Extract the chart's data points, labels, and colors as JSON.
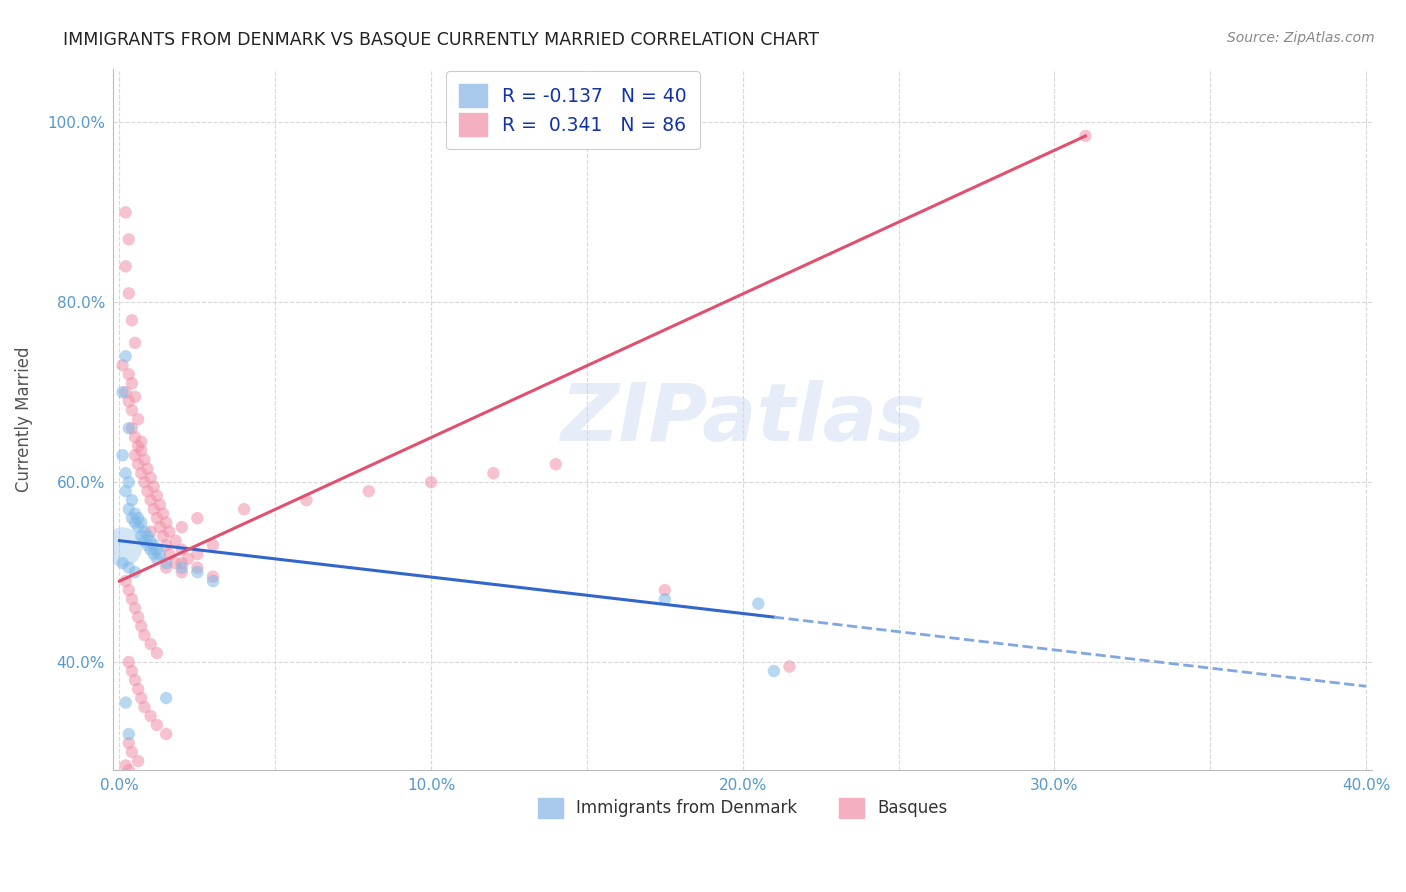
{
  "title": "IMMIGRANTS FROM DENMARK VS BASQUE CURRENTLY MARRIED CORRELATION CHART",
  "source": "Source: ZipAtlas.com",
  "ylabel": "Currently Married",
  "xlim": [
    -0.002,
    0.402
  ],
  "ylim": [
    0.28,
    1.06
  ],
  "xtick_labels": [
    "0.0%",
    "",
    "10.0%",
    "",
    "20.0%",
    "",
    "30.0%",
    "",
    "40.0%"
  ],
  "xtick_vals": [
    0.0,
    0.05,
    0.1,
    0.15,
    0.2,
    0.25,
    0.3,
    0.35,
    0.4
  ],
  "ytick_labels": [
    "40.0%",
    "60.0%",
    "80.0%",
    "100.0%"
  ],
  "ytick_vals": [
    0.4,
    0.6,
    0.8,
    1.0
  ],
  "legend_labels_top": [
    "R = -0.137   N = 40",
    "R =  0.341   N = 86"
  ],
  "legend_labels_bot": [
    "Immigrants from Denmark",
    "Basques"
  ],
  "denmark_color": "#7eb8e8",
  "basque_color": "#f090a8",
  "denmark_R": -0.137,
  "basque_R": 0.341,
  "watermark": "ZIPatlas",
  "background_color": "#ffffff",
  "grid_color": "#d8d8d8",
  "denmark_scatter": [
    [
      0.001,
      0.7
    ],
    [
      0.002,
      0.74
    ],
    [
      0.003,
      0.66
    ],
    [
      0.001,
      0.63
    ],
    [
      0.002,
      0.61
    ],
    [
      0.003,
      0.6
    ],
    [
      0.002,
      0.59
    ],
    [
      0.004,
      0.58
    ],
    [
      0.003,
      0.57
    ],
    [
      0.005,
      0.565
    ],
    [
      0.004,
      0.56
    ],
    [
      0.006,
      0.56
    ],
    [
      0.005,
      0.555
    ],
    [
      0.007,
      0.555
    ],
    [
      0.006,
      0.55
    ],
    [
      0.008,
      0.545
    ],
    [
      0.007,
      0.54
    ],
    [
      0.009,
      0.54
    ],
    [
      0.008,
      0.535
    ],
    [
      0.01,
      0.535
    ],
    [
      0.009,
      0.53
    ],
    [
      0.011,
      0.53
    ],
    [
      0.01,
      0.525
    ],
    [
      0.012,
      0.525
    ],
    [
      0.011,
      0.52
    ],
    [
      0.013,
      0.52
    ],
    [
      0.012,
      0.515
    ],
    [
      0.015,
      0.51
    ],
    [
      0.02,
      0.505
    ],
    [
      0.025,
      0.5
    ],
    [
      0.001,
      0.51
    ],
    [
      0.003,
      0.505
    ],
    [
      0.005,
      0.5
    ],
    [
      0.03,
      0.49
    ],
    [
      0.002,
      0.355
    ],
    [
      0.003,
      0.32
    ],
    [
      0.175,
      0.47
    ],
    [
      0.205,
      0.465
    ],
    [
      0.21,
      0.39
    ],
    [
      0.015,
      0.36
    ]
  ],
  "basque_scatter": [
    [
      0.002,
      0.9
    ],
    [
      0.003,
      0.87
    ],
    [
      0.002,
      0.84
    ],
    [
      0.003,
      0.81
    ],
    [
      0.004,
      0.78
    ],
    [
      0.005,
      0.755
    ],
    [
      0.001,
      0.73
    ],
    [
      0.003,
      0.72
    ],
    [
      0.004,
      0.71
    ],
    [
      0.002,
      0.7
    ],
    [
      0.005,
      0.695
    ],
    [
      0.003,
      0.69
    ],
    [
      0.004,
      0.68
    ],
    [
      0.006,
      0.67
    ],
    [
      0.004,
      0.66
    ],
    [
      0.005,
      0.65
    ],
    [
      0.007,
      0.645
    ],
    [
      0.006,
      0.64
    ],
    [
      0.007,
      0.635
    ],
    [
      0.005,
      0.63
    ],
    [
      0.008,
      0.625
    ],
    [
      0.006,
      0.62
    ],
    [
      0.009,
      0.615
    ],
    [
      0.007,
      0.61
    ],
    [
      0.01,
      0.605
    ],
    [
      0.008,
      0.6
    ],
    [
      0.011,
      0.595
    ],
    [
      0.009,
      0.59
    ],
    [
      0.012,
      0.585
    ],
    [
      0.01,
      0.58
    ],
    [
      0.013,
      0.575
    ],
    [
      0.011,
      0.57
    ],
    [
      0.014,
      0.565
    ],
    [
      0.012,
      0.56
    ],
    [
      0.015,
      0.555
    ],
    [
      0.013,
      0.55
    ],
    [
      0.016,
      0.545
    ],
    [
      0.014,
      0.54
    ],
    [
      0.018,
      0.535
    ],
    [
      0.015,
      0.53
    ],
    [
      0.02,
      0.525
    ],
    [
      0.016,
      0.52
    ],
    [
      0.022,
      0.515
    ],
    [
      0.018,
      0.51
    ],
    [
      0.025,
      0.505
    ],
    [
      0.02,
      0.5
    ],
    [
      0.03,
      0.495
    ],
    [
      0.002,
      0.49
    ],
    [
      0.003,
      0.48
    ],
    [
      0.004,
      0.47
    ],
    [
      0.005,
      0.46
    ],
    [
      0.006,
      0.45
    ],
    [
      0.007,
      0.44
    ],
    [
      0.008,
      0.43
    ],
    [
      0.01,
      0.42
    ],
    [
      0.012,
      0.41
    ],
    [
      0.003,
      0.4
    ],
    [
      0.004,
      0.39
    ],
    [
      0.005,
      0.38
    ],
    [
      0.006,
      0.37
    ],
    [
      0.007,
      0.36
    ],
    [
      0.008,
      0.35
    ],
    [
      0.01,
      0.34
    ],
    [
      0.012,
      0.33
    ],
    [
      0.015,
      0.32
    ],
    [
      0.003,
      0.31
    ],
    [
      0.004,
      0.3
    ],
    [
      0.006,
      0.29
    ],
    [
      0.002,
      0.285
    ],
    [
      0.003,
      0.28
    ],
    [
      0.175,
      0.48
    ],
    [
      0.31,
      0.985
    ],
    [
      0.215,
      0.395
    ],
    [
      0.02,
      0.51
    ],
    [
      0.025,
      0.52
    ],
    [
      0.03,
      0.53
    ],
    [
      0.015,
      0.505
    ],
    [
      0.01,
      0.545
    ],
    [
      0.02,
      0.55
    ],
    [
      0.025,
      0.56
    ],
    [
      0.04,
      0.57
    ],
    [
      0.06,
      0.58
    ],
    [
      0.08,
      0.59
    ],
    [
      0.1,
      0.6
    ],
    [
      0.12,
      0.61
    ],
    [
      0.14,
      0.62
    ]
  ]
}
